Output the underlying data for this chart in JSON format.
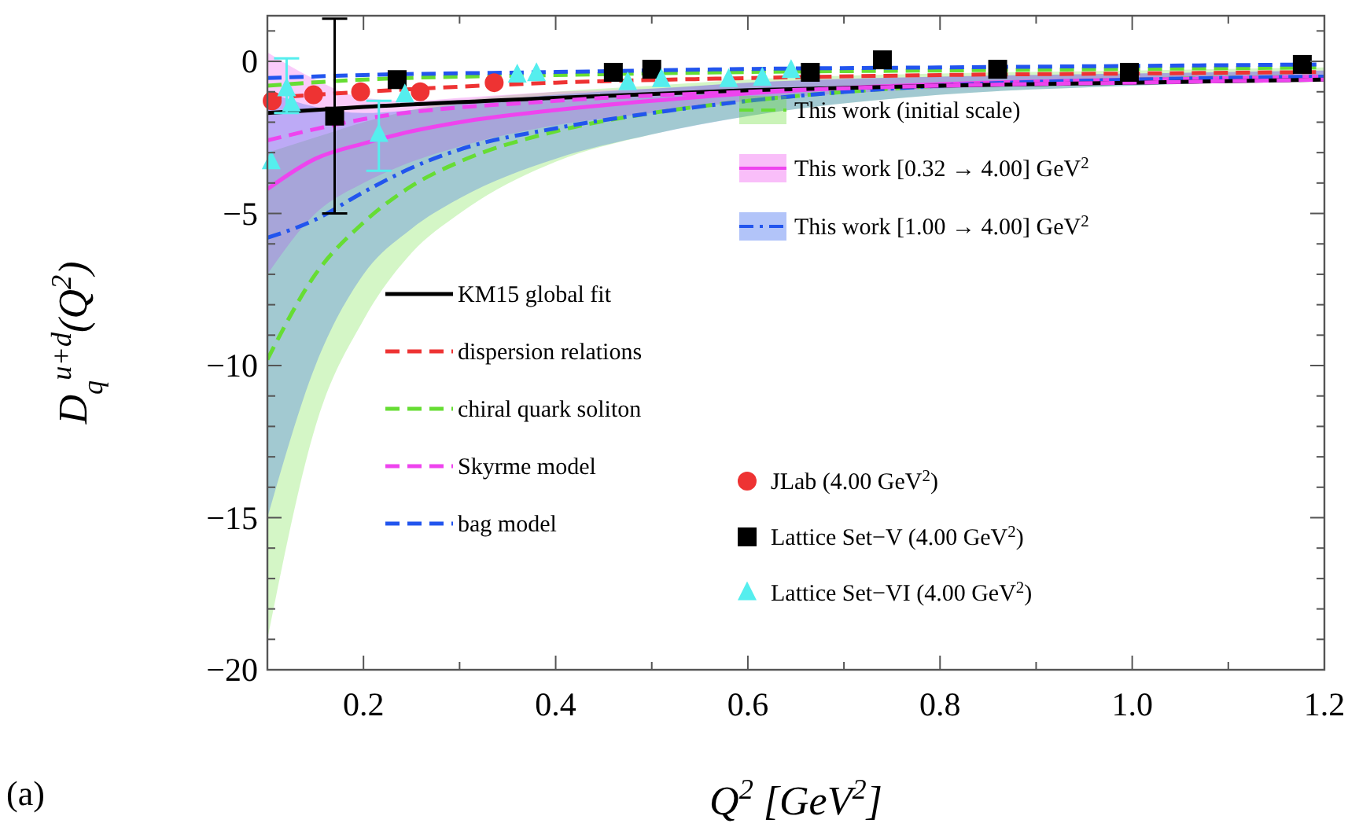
{
  "chart_data": {
    "type": "line",
    "xlabel": "Q$^{2}$ [GeV$^{2}$]",
    "ylabel": "D$_{q}$$^{u+d}$(Q$^{2}$)",
    "annotations": [
      "(a)"
    ],
    "xlim": [
      0.1,
      1.2
    ],
    "ylim": [
      -20,
      1.5
    ],
    "xticks": [
      {
        "value": 0.1,
        "label": null
      },
      0.2,
      {
        "value": 0.3,
        "label": null
      },
      0.4,
      {
        "value": 0.5,
        "label": null
      },
      0.6,
      {
        "value": 0.7,
        "label": null
      },
      0.8,
      {
        "value": 0.9,
        "label": null
      },
      {
        "value": 1.0,
        "label": "1.0"
      },
      {
        "value": 1.1,
        "label": null
      },
      1.2
    ],
    "yticks": [
      -20,
      {
        "value": -19,
        "label": null
      },
      {
        "value": -18,
        "label": null
      },
      {
        "value": -17,
        "label": null
      },
      {
        "value": -16,
        "label": null
      },
      -15,
      {
        "value": -14,
        "label": null
      },
      {
        "value": -13,
        "label": null
      },
      {
        "value": -12,
        "label": null
      },
      {
        "value": -11,
        "label": null
      },
      -10,
      {
        "value": -9,
        "label": null
      },
      {
        "value": -8,
        "label": null
      },
      {
        "value": -7,
        "label": null
      },
      {
        "value": -6,
        "label": null
      },
      -5,
      {
        "value": -4,
        "label": null
      },
      {
        "value": -3,
        "label": null
      },
      {
        "value": -2,
        "label": null
      },
      {
        "value": -1,
        "label": null
      },
      0,
      {
        "value": 1,
        "label": null
      }
    ],
    "grid": false,
    "legend": "center",
    "x": [
      0.1,
      0.15,
      0.2,
      0.25,
      0.3,
      0.4,
      0.5,
      0.6,
      0.8,
      1.0,
      1.2
    ],
    "series": [
      {
        "name": "This work (initial scale)",
        "color": "#66dd33",
        "line_style": "dashed",
        "values": [
          -9.8,
          -7,
          -5.3,
          -4.1,
          -3.3,
          -2.3,
          -1.7,
          -1.3,
          -0.8,
          -0.6,
          -0.5
        ],
        "lower": [
          -19,
          -12,
          -8.5,
          -6.3,
          -5,
          -3.3,
          -2.4,
          -1.8,
          -1.1,
          -0.8,
          -0.6
        ],
        "upper": [
          -3,
          -2.5,
          -2,
          -1.6,
          -1.3,
          -1,
          -0.8,
          -0.6,
          -0.4,
          -0.3,
          -0.2
        ]
      },
      {
        "name": "This work [0.32 → 4.00] GeV$^{2}$",
        "color": "#ee44ee",
        "line_style": "solid",
        "values": [
          -4.2,
          -3.2,
          -2.7,
          -2.3,
          -2,
          -1.6,
          -1.3,
          -1.05,
          -0.75,
          -0.6,
          -0.5
        ],
        "lower": [
          -7,
          -5,
          -4,
          -3.3,
          -2.8,
          -2.1,
          -1.7,
          -1.3,
          -0.9,
          -0.7,
          -0.6
        ],
        "upper": [
          0.3,
          -0.6,
          -1.2,
          -1.3,
          -1.2,
          -1,
          -0.9,
          -0.7,
          -0.5,
          -0.4,
          -0.3
        ]
      },
      {
        "name": "This work [1.00 → 4.00] GeV$^{2}$",
        "color": "#2255ee",
        "line_style": "dotted",
        "values": [
          -5.8,
          -5.2,
          -4.3,
          -3.5,
          -2.9,
          -2.2,
          -1.7,
          -1.3,
          -0.8,
          -0.6,
          -0.5
        ],
        "lower": [
          -15,
          -10,
          -7,
          -5.5,
          -4.5,
          -3.2,
          -2.4,
          -1.8,
          -1.1,
          -0.8,
          -0.6
        ],
        "upper": [
          -1,
          -1.5,
          -1.7,
          -1.6,
          -1.4,
          -1.1,
          -0.9,
          -0.7,
          -0.5,
          -0.4,
          -0.3
        ]
      },
      {
        "name": "KM15 global fit",
        "color": "#000000",
        "line_style": "solid",
        "x": [
          0.1,
          0.2,
          0.4,
          0.6,
          0.8,
          1.0,
          1.2
        ],
        "values": [
          -1.7,
          -1.5,
          -1.2,
          -0.95,
          -0.8,
          -0.7,
          -0.6
        ]
      },
      {
        "name": "dispersion relations",
        "color": "#ee3333",
        "line_style": "dashed",
        "x": [
          0.1,
          0.2,
          0.4,
          0.6,
          0.8,
          1.0,
          1.2
        ],
        "values": [
          -1.2,
          -1,
          -0.7,
          -0.55,
          -0.45,
          -0.4,
          -0.35
        ]
      },
      {
        "name": "chiral quark soliton",
        "color": "#66dd33",
        "line_style": "dashed",
        "x": [
          0.1,
          0.2,
          0.4,
          0.6,
          0.8,
          1.0,
          1.2
        ],
        "values": [
          -0.8,
          -0.6,
          -0.45,
          -0.35,
          -0.3,
          -0.25,
          -0.2
        ]
      },
      {
        "name": "Skyrme model",
        "color": "#ee44ee",
        "line_style": "dashed",
        "x": [
          0.1,
          0.2,
          0.4,
          0.6,
          0.8,
          1.0,
          1.2
        ],
        "values": [
          -2.6,
          -1.9,
          -1.3,
          -1,
          -0.8,
          -0.7,
          -0.6
        ]
      },
      {
        "name": "bag model",
        "color": "#2255ee",
        "line_style": "dashed",
        "x": [
          0.1,
          0.2,
          0.4,
          0.6,
          0.8,
          1.0,
          1.2
        ],
        "values": [
          -0.55,
          -0.45,
          -0.35,
          -0.25,
          -0.2,
          -0.15,
          -0.1
        ]
      },
      {
        "name": "JLab (4.00 GeV$^{2}$)",
        "type": "scatter",
        "marker": "circle",
        "color": "#ee3333",
        "x": [
          0.105,
          0.148,
          0.197,
          0.259,
          0.336
        ],
        "values": [
          -1.3,
          -1.1,
          -1,
          -1,
          -0.7
        ]
      },
      {
        "name": "Lattice Set−V (4.00 GeV$^{2}$)",
        "type": "scatter",
        "marker": "square",
        "color": "#000000",
        "x": [
          0.17,
          0.235,
          0.46,
          0.5,
          0.665,
          0.74,
          0.86,
          0.997,
          1.177
        ],
        "values": [
          -1.8,
          -0.6,
          -0.36,
          -0.26,
          -0.36,
          0.05,
          -0.26,
          -0.36,
          -0.1
        ],
        "errors": [
          [
            -5,
            1.4
          ],
          null,
          null,
          null,
          null,
          null,
          null,
          null,
          null
        ]
      },
      {
        "name": "Lattice Set−VI (4.00 GeV$^{2}$)",
        "type": "scatter",
        "marker": "triangle",
        "color": "#55eeee",
        "x": [
          0.104,
          0.12,
          0.125,
          0.216,
          0.243,
          0.36,
          0.38,
          0.475,
          0.51,
          0.58,
          0.615,
          0.645
        ],
        "values": [
          -3.3,
          -0.9,
          -1.4,
          -2.4,
          -1.1,
          -0.45,
          -0.4,
          -0.7,
          -0.6,
          -0.6,
          -0.55,
          -0.3
        ],
        "errors": [
          null,
          [
            -1.7,
            0.1
          ],
          null,
          [
            -3.6,
            -1.3
          ],
          null,
          null,
          null,
          null,
          null,
          null,
          null,
          null
        ]
      }
    ]
  }
}
